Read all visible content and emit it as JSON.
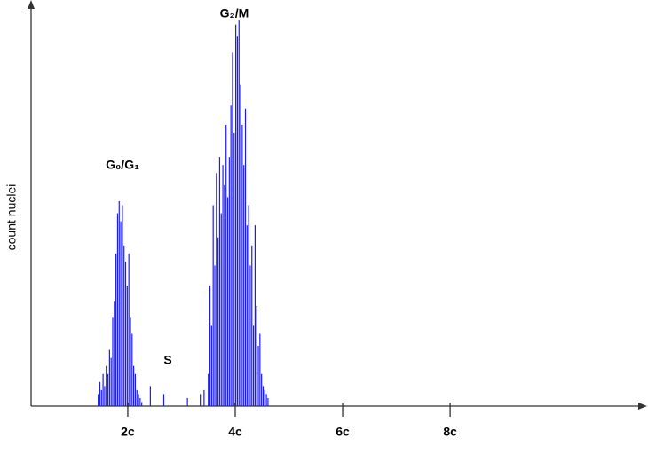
{
  "chart_data": {
    "type": "bar",
    "ylabel": "count nuclei",
    "color": "#1a1aff",
    "annotations": [
      "G₀/G₁",
      "S",
      "G₂/M"
    ],
    "x": [
      1.45,
      1.48,
      1.51,
      1.54,
      1.57,
      1.6,
      1.63,
      1.66,
      1.69,
      1.72,
      1.75,
      1.78,
      1.81,
      1.84,
      1.87,
      1.9,
      1.93,
      1.96,
      1.99,
      2.02,
      2.05,
      2.08,
      2.11,
      2.14,
      2.17,
      2.2,
      2.23,
      2.26,
      2.42,
      2.67,
      3.11,
      3.35,
      3.42,
      3.5,
      3.53,
      3.56,
      3.59,
      3.62,
      3.65,
      3.68,
      3.71,
      3.74,
      3.77,
      3.8,
      3.83,
      3.86,
      3.89,
      3.92,
      3.95,
      3.98,
      4.01,
      4.04,
      4.07,
      4.1,
      4.13,
      4.16,
      4.19,
      4.22,
      4.25,
      4.28,
      4.31,
      4.34,
      4.37,
      4.4,
      4.43,
      4.46,
      4.49,
      4.52,
      4.55,
      4.58,
      4.61
    ],
    "values": [
      3,
      6,
      4,
      8,
      5,
      10,
      8,
      14,
      12,
      22,
      26,
      38,
      48,
      51,
      46,
      50,
      40,
      36,
      30,
      38,
      22,
      18,
      10,
      8,
      4,
      3,
      2,
      1,
      5,
      3,
      2,
      3,
      4,
      8,
      30,
      20,
      50,
      35,
      58,
      42,
      62,
      48,
      60,
      55,
      70,
      52,
      62,
      75,
      88,
      68,
      95,
      92,
      96,
      80,
      70,
      60,
      74,
      45,
      50,
      35,
      40,
      20,
      45,
      25,
      15,
      18,
      8,
      5,
      4,
      3,
      2
    ],
    "xlim": [
      0.2,
      11.6
    ],
    "xticks": [
      {
        "value": 2,
        "label": "2c"
      },
      {
        "value": 4,
        "label": "4c"
      },
      {
        "value": 6,
        "label": "6c"
      },
      {
        "value": 8,
        "label": "8c"
      }
    ],
    "ylim": [
      0,
      100
    ]
  }
}
